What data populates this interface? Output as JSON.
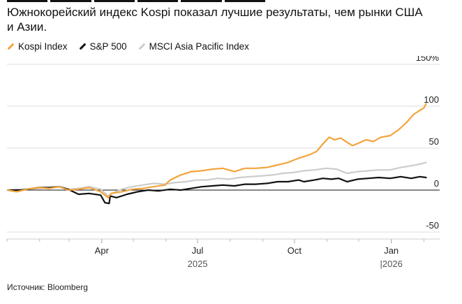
{
  "title": "Южнокорейский индекс Kospi показал лучшие результаты, чем рынки США и Азии.",
  "source": "Источник: Bloomberg",
  "chart_data": {
    "type": "line",
    "title": "Южнокорейский индекс Kospi показал лучшие результаты, чем рынки США и Азии.",
    "y_unit": "%",
    "ylim": [
      -50,
      150
    ],
    "y_ticks": [
      -50,
      0,
      50,
      100,
      150
    ],
    "y_tick_labels": [
      "-50",
      "0",
      "50",
      "100",
      "150%"
    ],
    "x_range": [
      "2025-01-01",
      "2026-02-04"
    ],
    "x_ticks": [
      {
        "date": "2025-04-01",
        "label": "Apr"
      },
      {
        "date": "2025-07-01",
        "label": "Jul"
      },
      {
        "date": "2025-10-01",
        "label": "Oct"
      },
      {
        "date": "2026-01-01",
        "label": "Jan"
      }
    ],
    "year_labels": [
      {
        "date": "2025-07-01",
        "label": "2025"
      },
      {
        "date": "2026-01-01",
        "label": "|2026"
      }
    ],
    "grid": true,
    "legend_position": "top-left",
    "series": [
      {
        "name": "Kospi Index",
        "color": "#f4a43c",
        "points": [
          [
            "2025-01-02",
            0
          ],
          [
            "2025-01-10",
            -2
          ],
          [
            "2025-01-20",
            1
          ],
          [
            "2025-01-31",
            3
          ],
          [
            "2025-02-10",
            2
          ],
          [
            "2025-02-20",
            4
          ],
          [
            "2025-02-28",
            0
          ],
          [
            "2025-03-10",
            1
          ],
          [
            "2025-03-20",
            3
          ],
          [
            "2025-03-31",
            -2
          ],
          [
            "2025-04-07",
            -9
          ],
          [
            "2025-04-10",
            -4
          ],
          [
            "2025-04-20",
            -2
          ],
          [
            "2025-04-30",
            1
          ],
          [
            "2025-05-10",
            2
          ],
          [
            "2025-05-20",
            4
          ],
          [
            "2025-05-31",
            6
          ],
          [
            "2025-06-05",
            12
          ],
          [
            "2025-06-15",
            18
          ],
          [
            "2025-06-25",
            22
          ],
          [
            "2025-07-05",
            23
          ],
          [
            "2025-07-15",
            25
          ],
          [
            "2025-07-25",
            26
          ],
          [
            "2025-08-05",
            22
          ],
          [
            "2025-08-15",
            26
          ],
          [
            "2025-08-25",
            26
          ],
          [
            "2025-09-05",
            27
          ],
          [
            "2025-09-15",
            30
          ],
          [
            "2025-09-25",
            33
          ],
          [
            "2025-10-05",
            38
          ],
          [
            "2025-10-15",
            42
          ],
          [
            "2025-10-22",
            46
          ],
          [
            "2025-10-28",
            55
          ],
          [
            "2025-11-03",
            63
          ],
          [
            "2025-11-08",
            60
          ],
          [
            "2025-11-14",
            62
          ],
          [
            "2025-11-20",
            57
          ],
          [
            "2025-11-25",
            53
          ],
          [
            "2025-12-01",
            56
          ],
          [
            "2025-12-08",
            60
          ],
          [
            "2025-12-15",
            58
          ],
          [
            "2025-12-22",
            63
          ],
          [
            "2025-12-31",
            65
          ],
          [
            "2026-01-08",
            72
          ],
          [
            "2026-01-15",
            80
          ],
          [
            "2026-01-22",
            90
          ],
          [
            "2026-01-28",
            95
          ],
          [
            "2026-02-01",
            98
          ],
          [
            "2026-02-03",
            103
          ]
        ]
      },
      {
        "name": "S&P 500",
        "color": "#111111",
        "points": [
          [
            "2025-01-02",
            0
          ],
          [
            "2025-01-15",
            0
          ],
          [
            "2025-01-31",
            3
          ],
          [
            "2025-02-10",
            3
          ],
          [
            "2025-02-20",
            4
          ],
          [
            "2025-02-28",
            1
          ],
          [
            "2025-03-10",
            -5
          ],
          [
            "2025-03-20",
            -4
          ],
          [
            "2025-03-31",
            -6
          ],
          [
            "2025-04-04",
            -15
          ],
          [
            "2025-04-08",
            -16
          ],
          [
            "2025-04-09",
            -7
          ],
          [
            "2025-04-15",
            -9
          ],
          [
            "2025-04-25",
            -5
          ],
          [
            "2025-05-05",
            -2
          ],
          [
            "2025-05-15",
            0
          ],
          [
            "2025-05-25",
            -1
          ],
          [
            "2025-06-05",
            1
          ],
          [
            "2025-06-15",
            0
          ],
          [
            "2025-06-25",
            2
          ],
          [
            "2025-07-05",
            4
          ],
          [
            "2025-07-15",
            5
          ],
          [
            "2025-07-25",
            6
          ],
          [
            "2025-08-05",
            5
          ],
          [
            "2025-08-15",
            7
          ],
          [
            "2025-08-25",
            7
          ],
          [
            "2025-09-05",
            8
          ],
          [
            "2025-09-15",
            10
          ],
          [
            "2025-09-25",
            10
          ],
          [
            "2025-10-05",
            12
          ],
          [
            "2025-10-10",
            10
          ],
          [
            "2025-10-20",
            12
          ],
          [
            "2025-10-28",
            14
          ],
          [
            "2025-11-05",
            13
          ],
          [
            "2025-11-12",
            14
          ],
          [
            "2025-11-20",
            10
          ],
          [
            "2025-11-30",
            13
          ],
          [
            "2025-12-10",
            14
          ],
          [
            "2025-12-20",
            15
          ],
          [
            "2025-12-31",
            14
          ],
          [
            "2026-01-10",
            16
          ],
          [
            "2026-01-20",
            14
          ],
          [
            "2026-01-28",
            16
          ],
          [
            "2026-02-03",
            15
          ]
        ]
      },
      {
        "name": "MSCI Asia Pacific Index",
        "color": "#cccccc",
        "points": [
          [
            "2025-01-02",
            0
          ],
          [
            "2025-01-15",
            1
          ],
          [
            "2025-01-31",
            2
          ],
          [
            "2025-02-10",
            3
          ],
          [
            "2025-02-20",
            4
          ],
          [
            "2025-02-28",
            1
          ],
          [
            "2025-03-10",
            2
          ],
          [
            "2025-03-20",
            4
          ],
          [
            "2025-03-31",
            1
          ],
          [
            "2025-04-07",
            -7
          ],
          [
            "2025-04-12",
            -3
          ],
          [
            "2025-04-20",
            1
          ],
          [
            "2025-04-30",
            4
          ],
          [
            "2025-05-10",
            6
          ],
          [
            "2025-05-20",
            8
          ],
          [
            "2025-05-31",
            7
          ],
          [
            "2025-06-10",
            9
          ],
          [
            "2025-06-20",
            10
          ],
          [
            "2025-06-30",
            12
          ],
          [
            "2025-07-10",
            12
          ],
          [
            "2025-07-20",
            14
          ],
          [
            "2025-07-31",
            13
          ],
          [
            "2025-08-10",
            15
          ],
          [
            "2025-08-20",
            16
          ],
          [
            "2025-08-31",
            17
          ],
          [
            "2025-09-10",
            18
          ],
          [
            "2025-09-20",
            20
          ],
          [
            "2025-09-30",
            21
          ],
          [
            "2025-10-10",
            23
          ],
          [
            "2025-10-20",
            24
          ],
          [
            "2025-10-31",
            26
          ],
          [
            "2025-11-10",
            25
          ],
          [
            "2025-11-20",
            20
          ],
          [
            "2025-11-30",
            22
          ],
          [
            "2025-12-10",
            23
          ],
          [
            "2025-12-20",
            24
          ],
          [
            "2025-12-31",
            24
          ],
          [
            "2026-01-10",
            27
          ],
          [
            "2026-01-20",
            29
          ],
          [
            "2026-01-28",
            31
          ],
          [
            "2026-02-03",
            33
          ]
        ]
      }
    ]
  }
}
